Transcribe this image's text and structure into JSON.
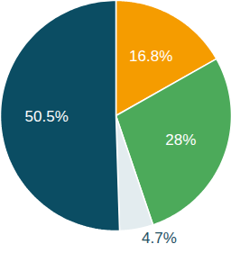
{
  "chart_data": {
    "type": "pie",
    "values": [
      16.8,
      28,
      4.7,
      50.5
    ],
    "value_labels": [
      "16.8%",
      "28%",
      "4.7%",
      "50.5%"
    ],
    "colors": [
      "#f59c00",
      "#4caa5a",
      "#e3ecef",
      "#0b4d63"
    ],
    "data_labels": true
  }
}
